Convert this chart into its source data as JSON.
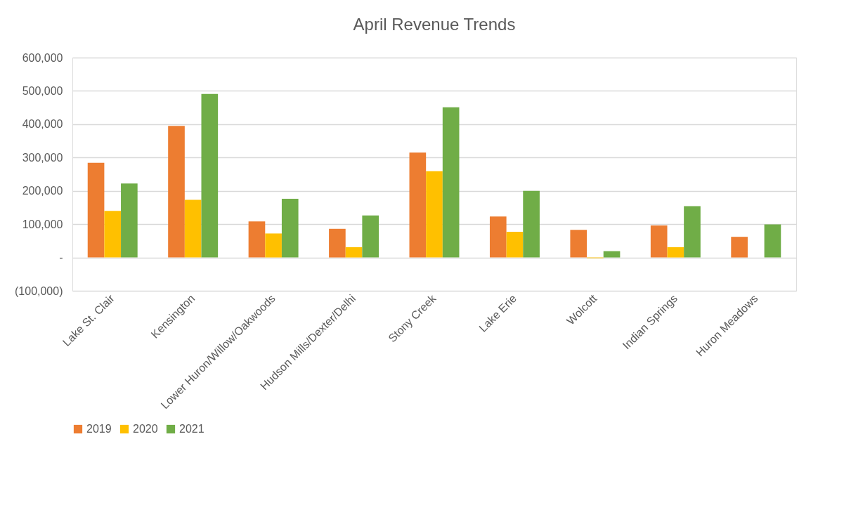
{
  "chart_data": {
    "type": "bar",
    "title": "April Revenue Trends",
    "categories": [
      "Lake St. Clair",
      "Kensington",
      "Lower Huron/Willow/Oakwoods",
      "Hudson Mills/Dexter/Delhi",
      "Stony Creek",
      "Lake Erie",
      "Wolcott",
      "Indian Springs",
      "Huron Meadows"
    ],
    "series": [
      {
        "name": "2019",
        "color": "#ed7d31",
        "values": [
          284000,
          395000,
          108000,
          86000,
          315000,
          123000,
          83000,
          96000,
          62000
        ]
      },
      {
        "name": "2020",
        "color": "#ffc000",
        "values": [
          140000,
          173000,
          72000,
          31000,
          259000,
          77000,
          -2000,
          31000,
          null
        ]
      },
      {
        "name": "2021",
        "color": "#70ad47",
        "values": [
          222000,
          491000,
          176000,
          126000,
          451000,
          200000,
          19000,
          154000,
          99000
        ]
      }
    ],
    "ylim": [
      -100000,
      600000
    ],
    "yticks": [
      {
        "value": -100000,
        "label": "(100,000)"
      },
      {
        "value": 0,
        "label": "-"
      },
      {
        "value": 100000,
        "label": "100,000"
      },
      {
        "value": 200000,
        "label": "200,000"
      },
      {
        "value": 300000,
        "label": "300,000"
      },
      {
        "value": 400000,
        "label": "400,000"
      },
      {
        "value": 500000,
        "label": "500,000"
      },
      {
        "value": 600000,
        "label": "600,000"
      }
    ],
    "grid": "y",
    "legend": "bottom"
  }
}
